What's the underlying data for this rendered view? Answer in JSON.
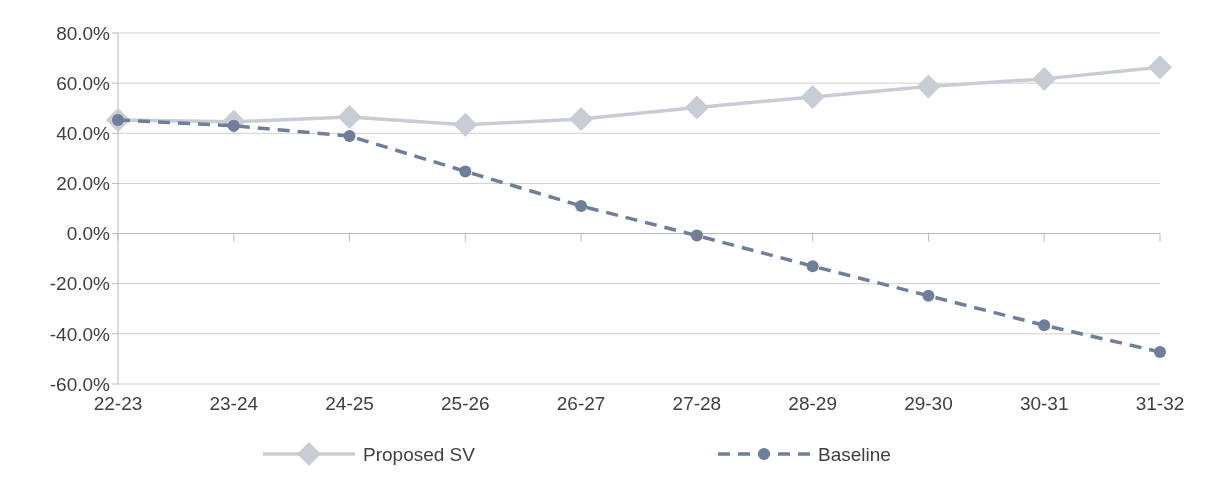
{
  "chart_data": {
    "type": "line",
    "categories": [
      "22-23",
      "23-24",
      "24-25",
      "25-26",
      "26-27",
      "27-28",
      "28-29",
      "29-30",
      "30-31",
      "31-32"
    ],
    "series": [
      {
        "name": "Proposed SV",
        "color": "#c8ccd4",
        "marker": "diamond",
        "line_style": "solid",
        "values": [
          45.3,
          44.6,
          46.5,
          43.4,
          45.7,
          50.3,
          54.5,
          58.7,
          61.7,
          66.3
        ]
      },
      {
        "name": "Baseline",
        "color": "#6f7f9a",
        "marker": "circle",
        "line_style": "dashed",
        "values": [
          45.3,
          43.0,
          38.9,
          24.8,
          11.0,
          -0.8,
          -13.0,
          -24.8,
          -36.6,
          -47.2
        ]
      }
    ],
    "ylim": [
      -60,
      80
    ],
    "yticks": [
      {
        "value": -60,
        "label": "-60.0%"
      },
      {
        "value": -40,
        "label": "-40.0%"
      },
      {
        "value": -20,
        "label": "-20.0%"
      },
      {
        "value": 0,
        "label": "0.0%"
      },
      {
        "value": 20,
        "label": "20.0%"
      },
      {
        "value": 40,
        "label": "40.0%"
      },
      {
        "value": 60,
        "label": "60.0%"
      },
      {
        "value": 80,
        "label": "80.0%"
      }
    ],
    "grid": "y",
    "legend": "bottom"
  }
}
